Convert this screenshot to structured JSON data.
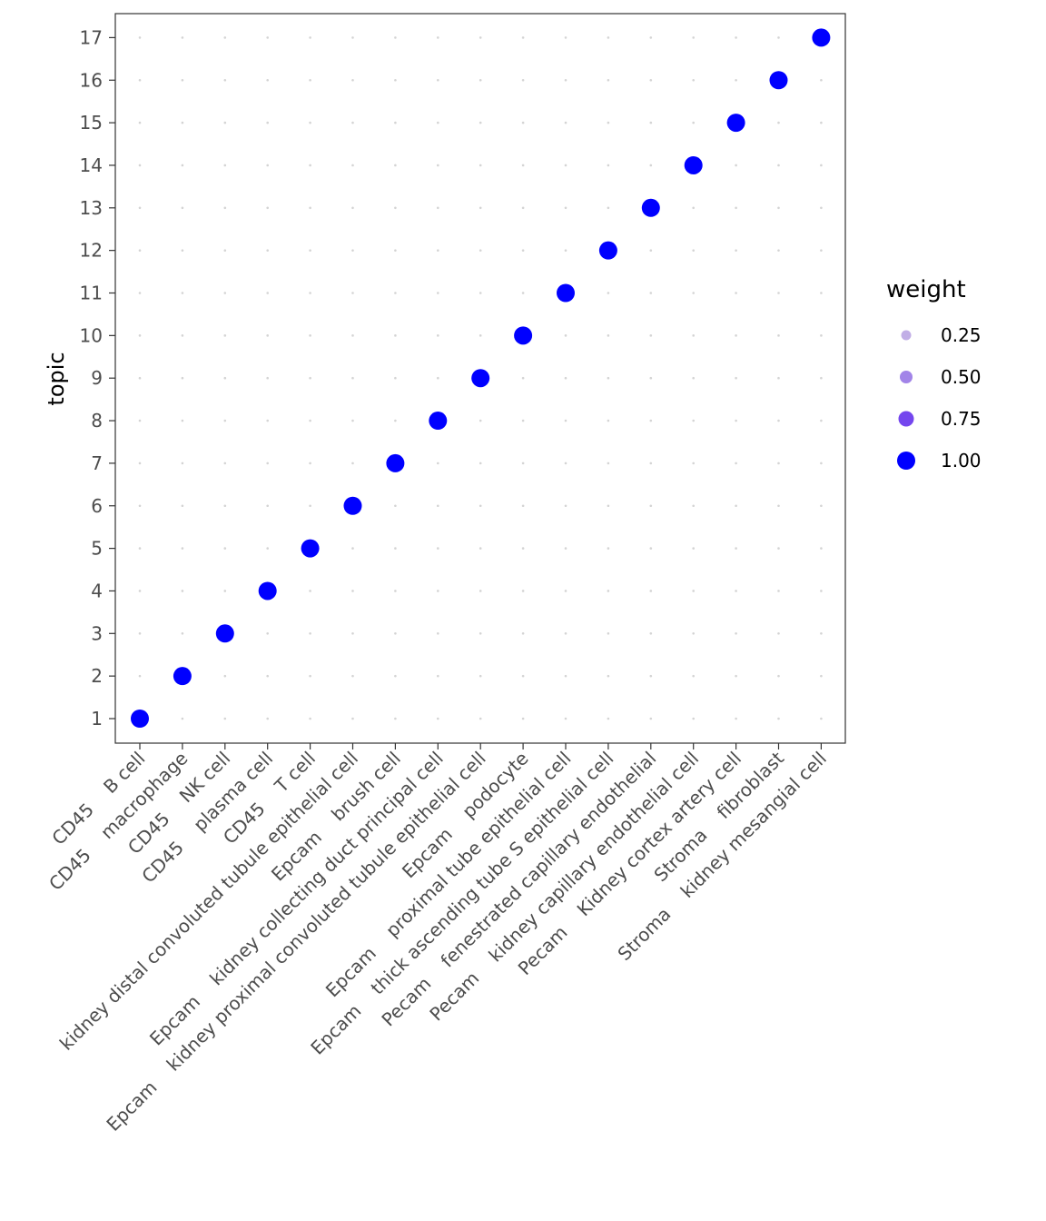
{
  "chart_data": {
    "type": "scatter",
    "title": "",
    "xlabel": "",
    "ylabel": "topic",
    "categories": [
      "CD45    B cell",
      "CD45    macrophage",
      "CD45    NK cell",
      "CD45    plasma cell",
      "CD45    T cell",
      "kidney distal convoluted tubule epithelial cell",
      "Epcam    brush cell",
      "Epcam    kidney collecting duct principal cell",
      "Epcam    kidney proximal convoluted tubule epithelial cell",
      "Epcam    podocyte",
      "Epcam    proximal tube epithelial cell",
      "Epcam    thick ascending tube S epithelial cell",
      "Pecam    fenestrated capillary endothelial",
      "Pecam    kidney capillary endothelial cell",
      "Pecam    Kidney cortex artery cell",
      "Stroma    fibroblast",
      "Stroma    kidney mesangial cell"
    ],
    "y_ticks": [
      "1",
      "2",
      "3",
      "4",
      "5",
      "6",
      "7",
      "8",
      "9",
      "10",
      "11",
      "12",
      "13",
      "14",
      "15",
      "16",
      "17"
    ],
    "points": [
      {
        "x": 1,
        "y": 1,
        "weight": 1.0
      },
      {
        "x": 2,
        "y": 2,
        "weight": 1.0
      },
      {
        "x": 3,
        "y": 3,
        "weight": 1.0
      },
      {
        "x": 4,
        "y": 4,
        "weight": 1.0
      },
      {
        "x": 5,
        "y": 5,
        "weight": 1.0
      },
      {
        "x": 6,
        "y": 6,
        "weight": 1.0
      },
      {
        "x": 7,
        "y": 7,
        "weight": 1.0
      },
      {
        "x": 8,
        "y": 8,
        "weight": 1.0
      },
      {
        "x": 9,
        "y": 9,
        "weight": 1.0
      },
      {
        "x": 10,
        "y": 10,
        "weight": 1.0
      },
      {
        "x": 11,
        "y": 11,
        "weight": 1.0
      },
      {
        "x": 12,
        "y": 12,
        "weight": 1.0
      },
      {
        "x": 13,
        "y": 13,
        "weight": 1.0
      },
      {
        "x": 14,
        "y": 14,
        "weight": 1.0
      },
      {
        "x": 15,
        "y": 15,
        "weight": 1.0
      },
      {
        "x": 16,
        "y": 16,
        "weight": 1.0
      },
      {
        "x": 17,
        "y": 17,
        "weight": 1.0
      }
    ],
    "ylim": [
      1,
      17
    ],
    "grid": "dotted",
    "legend": {
      "title": "weight",
      "placement": "right",
      "entries": [
        {
          "label": "0.25",
          "value": 0.25,
          "color": "#c1aee6"
        },
        {
          "label": "0.50",
          "value": 0.5,
          "color": "#a284e8"
        },
        {
          "label": "0.75",
          "value": 0.75,
          "color": "#7446ee"
        },
        {
          "label": "1.00",
          "value": 1.0,
          "color": "#0000ff"
        }
      ]
    },
    "point_color": "#0000ff"
  }
}
